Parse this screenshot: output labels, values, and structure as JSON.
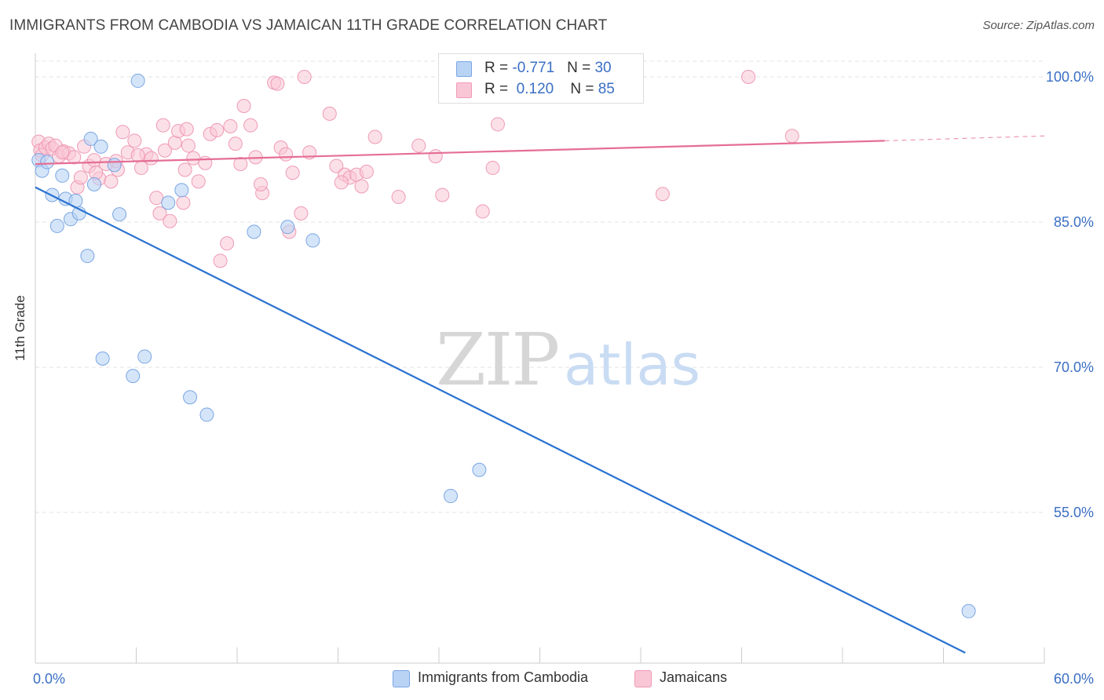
{
  "header": {
    "title": "IMMIGRANTS FROM CAMBODIA VS JAMAICAN 11TH GRADE CORRELATION CHART",
    "source": "Source: ZipAtlas.com"
  },
  "watermark": {
    "zip": "ZIP",
    "atlas": "atlas"
  },
  "legend_top": {
    "rows": [
      {
        "r_label": "R = ",
        "r_value": "-0.771",
        "n_label": "N = ",
        "n_value": "30"
      },
      {
        "r_label": "R = ",
        "r_value": "0.120",
        "n_label": "N = ",
        "n_value": "85"
      }
    ]
  },
  "colors": {
    "cambodia_fill": "#b9d3f5",
    "cambodia_stroke": "#7aa6e3",
    "cambodia_line": "#2a72d0",
    "jamaican_fill": "#f9c6d6",
    "jamaican_stroke": "#ef9ab6",
    "jamaican_line": "#e56e96",
    "tick_label": "#3a6fc4",
    "grid": "#e3e3e3"
  },
  "chart_data": {
    "type": "scatter",
    "title": "IMMIGRANTS FROM CAMBODIA VS JAMAICAN 11TH GRADE CORRELATION CHART",
    "xlabel": "",
    "ylabel": "11th Grade",
    "xlim": [
      0,
      60
    ],
    "ylim": [
      40.5,
      102
    ],
    "x_tick_labels": [
      "0.0%",
      "60.0%"
    ],
    "y_ticks": [
      55,
      70,
      85,
      100
    ],
    "y_tick_labels": [
      "55.0%",
      "70.0%",
      "85.0%",
      "100.0%"
    ],
    "grid": true,
    "legend_placement": "bottom",
    "series": [
      {
        "name": "Immigrants from Cambodia",
        "r": -0.771,
        "n": 30,
        "trend": {
          "x": [
            0,
            55.3
          ],
          "y": [
            88.6,
            40.5
          ]
        },
        "points": [
          {
            "x": 0.2,
            "y": 91.4
          },
          {
            "x": 0.4,
            "y": 90.3
          },
          {
            "x": 0.7,
            "y": 91.2
          },
          {
            "x": 1.0,
            "y": 87.8
          },
          {
            "x": 1.3,
            "y": 84.6
          },
          {
            "x": 1.6,
            "y": 89.8
          },
          {
            "x": 1.8,
            "y": 87.4
          },
          {
            "x": 2.1,
            "y": 85.3
          },
          {
            "x": 2.4,
            "y": 87.2
          },
          {
            "x": 2.6,
            "y": 85.9
          },
          {
            "x": 3.1,
            "y": 81.5
          },
          {
            "x": 3.3,
            "y": 93.6
          },
          {
            "x": 3.5,
            "y": 88.9
          },
          {
            "x": 3.9,
            "y": 92.8
          },
          {
            "x": 4.7,
            "y": 90.9
          },
          {
            "x": 5.0,
            "y": 85.8
          },
          {
            "x": 6.1,
            "y": 99.6
          },
          {
            "x": 7.9,
            "y": 87.0
          },
          {
            "x": 8.7,
            "y": 88.3
          },
          {
            "x": 4.0,
            "y": 70.9
          },
          {
            "x": 5.8,
            "y": 69.1
          },
          {
            "x": 6.5,
            "y": 71.1
          },
          {
            "x": 9.2,
            "y": 66.9
          },
          {
            "x": 10.2,
            "y": 65.1
          },
          {
            "x": 13.0,
            "y": 84.0
          },
          {
            "x": 15.0,
            "y": 84.5
          },
          {
            "x": 16.5,
            "y": 83.1
          },
          {
            "x": 24.7,
            "y": 56.7
          },
          {
            "x": 26.4,
            "y": 59.4
          },
          {
            "x": 55.5,
            "y": 44.8
          }
        ]
      },
      {
        "name": "Jamaicans",
        "r": 0.12,
        "n": 85,
        "trend": {
          "x": [
            0,
            50.5
          ],
          "y": [
            91.0,
            93.4
          ]
        },
        "trend_dashed": {
          "x": [
            50.5,
            60
          ],
          "y": [
            93.4,
            93.9
          ]
        },
        "points": [
          {
            "x": 0.2,
            "y": 93.3
          },
          {
            "x": 0.3,
            "y": 92.4
          },
          {
            "x": 0.4,
            "y": 91.9
          },
          {
            "x": 0.6,
            "y": 92.7
          },
          {
            "x": 0.8,
            "y": 93.1
          },
          {
            "x": 1.0,
            "y": 92.6
          },
          {
            "x": 1.2,
            "y": 92.9
          },
          {
            "x": 1.4,
            "y": 91.8
          },
          {
            "x": 1.7,
            "y": 92.3
          },
          {
            "x": 2.0,
            "y": 92.1
          },
          {
            "x": 2.3,
            "y": 91.7
          },
          {
            "x": 2.5,
            "y": 88.6
          },
          {
            "x": 2.9,
            "y": 92.8
          },
          {
            "x": 3.2,
            "y": 90.8
          },
          {
            "x": 3.5,
            "y": 91.4
          },
          {
            "x": 3.8,
            "y": 89.5
          },
          {
            "x": 4.2,
            "y": 91.0
          },
          {
            "x": 4.5,
            "y": 89.2
          },
          {
            "x": 4.9,
            "y": 90.4
          },
          {
            "x": 5.2,
            "y": 94.3
          },
          {
            "x": 5.5,
            "y": 92.2
          },
          {
            "x": 5.9,
            "y": 93.4
          },
          {
            "x": 6.3,
            "y": 90.6
          },
          {
            "x": 6.6,
            "y": 92.0
          },
          {
            "x": 6.9,
            "y": 91.6
          },
          {
            "x": 7.2,
            "y": 87.5
          },
          {
            "x": 7.4,
            "y": 85.9
          },
          {
            "x": 7.7,
            "y": 92.4
          },
          {
            "x": 7.6,
            "y": 95.0
          },
          {
            "x": 8.0,
            "y": 85.1
          },
          {
            "x": 8.3,
            "y": 93.2
          },
          {
            "x": 8.5,
            "y": 94.4
          },
          {
            "x": 8.8,
            "y": 87.0
          },
          {
            "x": 8.9,
            "y": 90.4
          },
          {
            "x": 9.1,
            "y": 92.9
          },
          {
            "x": 9.4,
            "y": 91.6
          },
          {
            "x": 9.7,
            "y": 89.2
          },
          {
            "x": 10.1,
            "y": 91.1
          },
          {
            "x": 10.4,
            "y": 94.1
          },
          {
            "x": 10.8,
            "y": 94.5
          },
          {
            "x": 11.0,
            "y": 81.0
          },
          {
            "x": 11.4,
            "y": 82.8
          },
          {
            "x": 11.9,
            "y": 93.1
          },
          {
            "x": 11.6,
            "y": 94.9
          },
          {
            "x": 12.2,
            "y": 91.0
          },
          {
            "x": 12.4,
            "y": 97.0
          },
          {
            "x": 12.8,
            "y": 95.0
          },
          {
            "x": 13.1,
            "y": 91.7
          },
          {
            "x": 13.5,
            "y": 88.0
          },
          {
            "x": 14.2,
            "y": 99.4
          },
          {
            "x": 14.4,
            "y": 99.3
          },
          {
            "x": 14.6,
            "y": 92.7
          },
          {
            "x": 14.9,
            "y": 92.0
          },
          {
            "x": 15.1,
            "y": 84.0
          },
          {
            "x": 15.3,
            "y": 90.1
          },
          {
            "x": 15.8,
            "y": 85.9
          },
          {
            "x": 16.3,
            "y": 92.2
          },
          {
            "x": 16.0,
            "y": 100.0
          },
          {
            "x": 17.5,
            "y": 96.2
          },
          {
            "x": 17.9,
            "y": 90.8
          },
          {
            "x": 18.4,
            "y": 89.9
          },
          {
            "x": 18.7,
            "y": 89.6
          },
          {
            "x": 19.1,
            "y": 89.9
          },
          {
            "x": 19.4,
            "y": 88.7
          },
          {
            "x": 19.7,
            "y": 90.2
          },
          {
            "x": 20.2,
            "y": 93.8
          },
          {
            "x": 21.6,
            "y": 87.6
          },
          {
            "x": 22.8,
            "y": 92.9
          },
          {
            "x": 23.8,
            "y": 91.8
          },
          {
            "x": 24.2,
            "y": 87.8
          },
          {
            "x": 26.6,
            "y": 86.1
          },
          {
            "x": 27.2,
            "y": 90.6
          },
          {
            "x": 27.5,
            "y": 95.1
          },
          {
            "x": 37.3,
            "y": 87.9
          },
          {
            "x": 42.4,
            "y": 100.0
          },
          {
            "x": 45.0,
            "y": 93.9
          },
          {
            "x": 4.8,
            "y": 91.3
          },
          {
            "x": 6.1,
            "y": 91.9
          },
          {
            "x": 1.6,
            "y": 92.2
          },
          {
            "x": 9.0,
            "y": 94.6
          },
          {
            "x": 13.4,
            "y": 88.9
          },
          {
            "x": 18.2,
            "y": 89.1
          },
          {
            "x": 3.6,
            "y": 90.1
          },
          {
            "x": 2.7,
            "y": 89.6
          },
          {
            "x": 25.8,
            "y": 98.3
          }
        ]
      }
    ]
  },
  "legend_bottom": {
    "items": [
      {
        "label": "Immigrants from Cambodia"
      },
      {
        "label": "Jamaicans"
      }
    ]
  }
}
